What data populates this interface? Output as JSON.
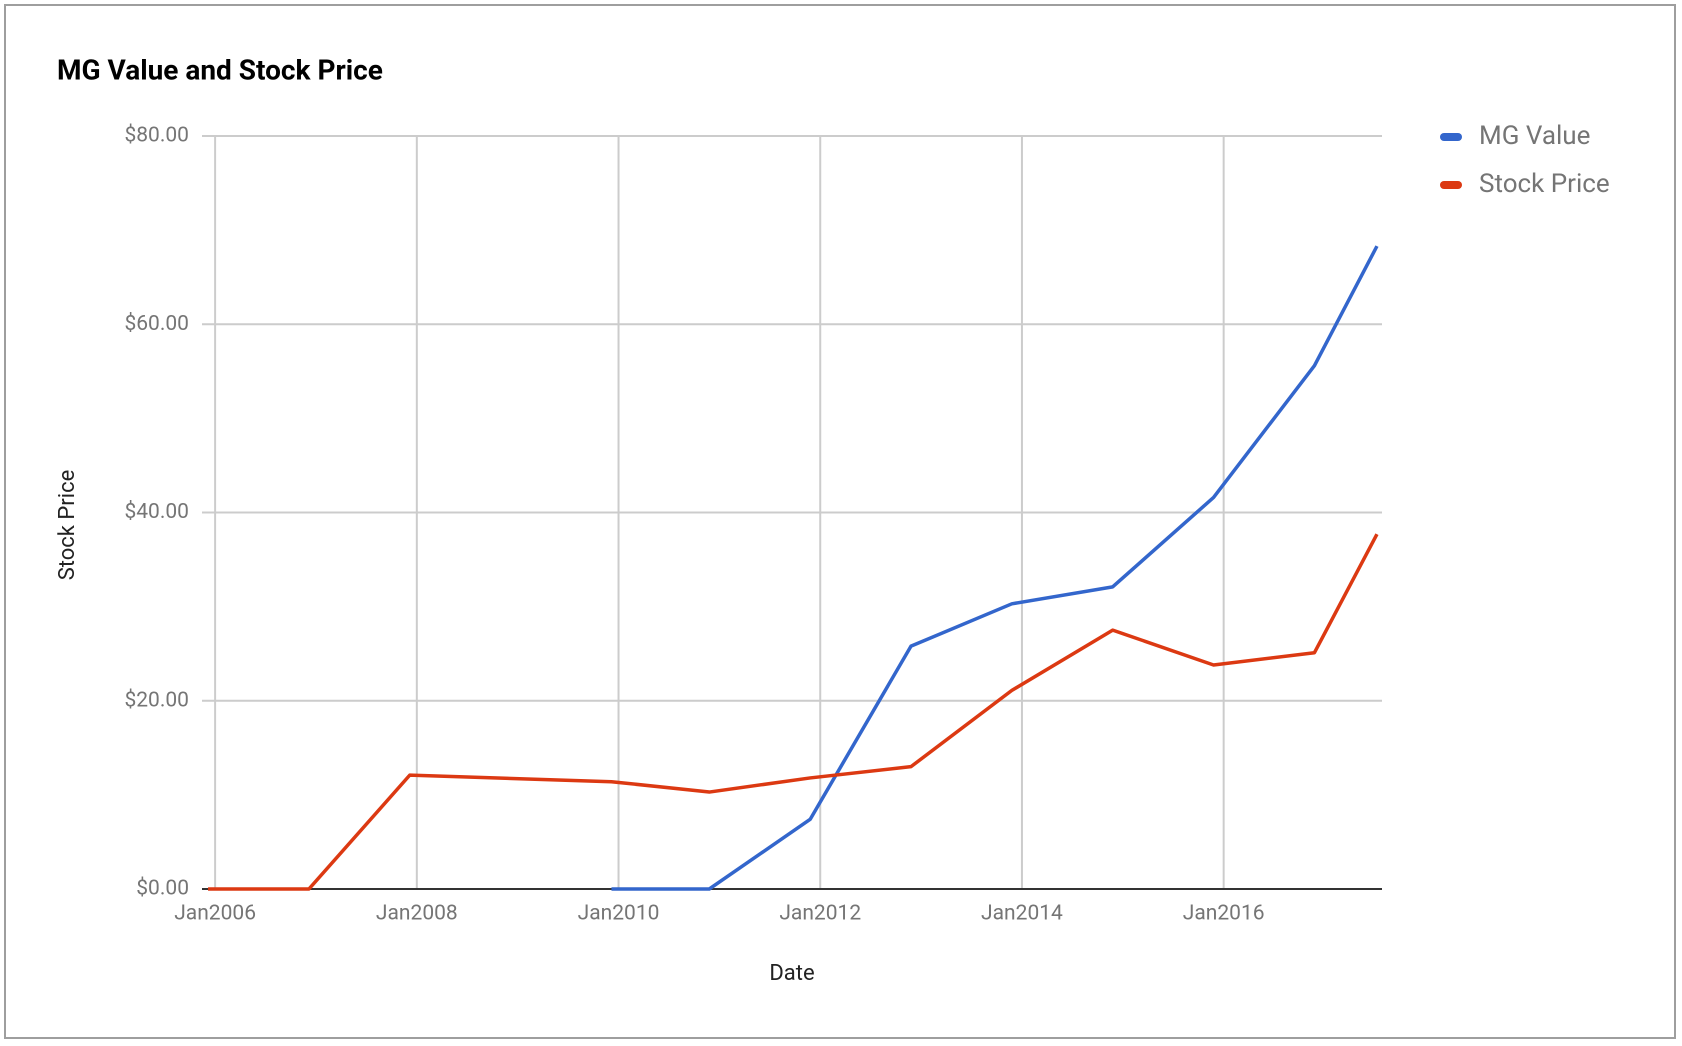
{
  "chart_data": {
    "type": "line",
    "title": "MG Value and Stock Price",
    "x_label": "Date",
    "y_label": "Stock Price",
    "x": [
      2005.93,
      2006.93,
      2007.93,
      2009.93,
      2010.9,
      2011.9,
      2012.9,
      2013.9,
      2014.9,
      2015.9,
      2016.9,
      2017.52
    ],
    "series": [
      {
        "name": "MG Value",
        "color": "#3366cc",
        "values": [
          null,
          null,
          null,
          0,
          0,
          7.4,
          25.8,
          30.3,
          32.1,
          41.6,
          55.6,
          68.3
        ]
      },
      {
        "name": "Stock Price",
        "color": "#dc3912",
        "values": [
          0,
          0,
          12.1,
          11.4,
          10.3,
          11.8,
          13.0,
          21.1,
          27.5,
          23.8,
          25.1,
          37.7
        ]
      }
    ],
    "xlim": [
      2005.87,
      2017.57
    ],
    "xticks": [
      {
        "value": 2006,
        "label": "Jan2006"
      },
      {
        "value": 2008,
        "label": "Jan2008"
      },
      {
        "value": 2010,
        "label": "Jan2010"
      },
      {
        "value": 2012,
        "label": "Jan2012"
      },
      {
        "value": 2014,
        "label": "Jan2014"
      },
      {
        "value": 2016,
        "label": "Jan2016"
      }
    ],
    "ylim": [
      0,
      80
    ],
    "yticks": [
      {
        "value": 0,
        "label": "$0.00"
      },
      {
        "value": 20,
        "label": "$20.00"
      },
      {
        "value": 40,
        "label": "$40.00"
      },
      {
        "value": 60,
        "label": "$60.00"
      },
      {
        "value": 80,
        "label": "$80.00"
      }
    ],
    "grid": true,
    "legend": "right"
  }
}
